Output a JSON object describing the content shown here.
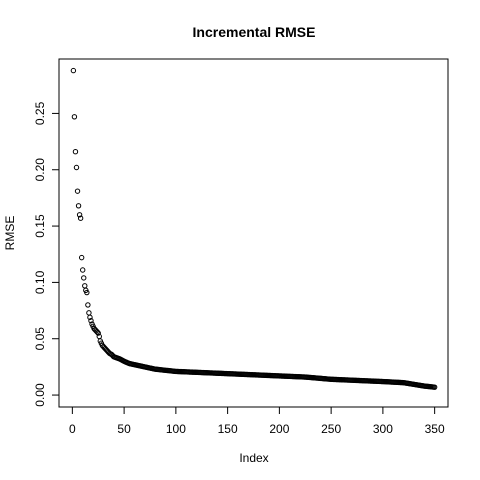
{
  "chart_data": {
    "type": "scatter",
    "title": "Incremental RMSE",
    "xlabel": "Index",
    "ylabel": "RMSE",
    "xlim": [
      -12.9,
      362.9
    ],
    "ylim": [
      -0.0106,
      0.2983
    ],
    "xticks": [
      0,
      50,
      100,
      150,
      200,
      250,
      300,
      350
    ],
    "xtick_labels": [
      "0",
      "50",
      "100",
      "150",
      "200",
      "250",
      "300",
      "350"
    ],
    "yticks": [
      0.0,
      0.05,
      0.1,
      0.15,
      0.2,
      0.25
    ],
    "ytick_labels": [
      "0.00",
      "0.05",
      "0.10",
      "0.15",
      "0.20",
      "0.25"
    ],
    "grid": false,
    "legend": "none",
    "marker": "open-circle",
    "color": "#000000",
    "n_points": 350,
    "explicit_points": [
      [
        1,
        0.288
      ],
      [
        2,
        0.247
      ],
      [
        3,
        0.216
      ],
      [
        4,
        0.202
      ],
      [
        5,
        0.181
      ],
      [
        6,
        0.168
      ],
      [
        7,
        0.16
      ],
      [
        8,
        0.157
      ],
      [
        9,
        0.122
      ],
      [
        10,
        0.111
      ],
      [
        11,
        0.104
      ],
      [
        12,
        0.097
      ],
      [
        13,
        0.093
      ],
      [
        14,
        0.091
      ],
      [
        15,
        0.08
      ],
      [
        16,
        0.073
      ],
      [
        17,
        0.069
      ],
      [
        18,
        0.066
      ],
      [
        19,
        0.063
      ],
      [
        20,
        0.061
      ],
      [
        21,
        0.059
      ],
      [
        22,
        0.058
      ],
      [
        23,
        0.057
      ],
      [
        24,
        0.056
      ],
      [
        25,
        0.055
      ],
      [
        26,
        0.052
      ],
      [
        27,
        0.048
      ],
      [
        28,
        0.046
      ],
      [
        29,
        0.044
      ],
      [
        30,
        0.043
      ],
      [
        32,
        0.041
      ],
      [
        34,
        0.039
      ],
      [
        36,
        0.037
      ],
      [
        38,
        0.036
      ],
      [
        40,
        0.034
      ],
      [
        43,
        0.033
      ],
      [
        46,
        0.032
      ],
      [
        50,
        0.03
      ],
      [
        55,
        0.028
      ],
      [
        60,
        0.027
      ],
      [
        70,
        0.025
      ],
      [
        80,
        0.023
      ],
      [
        90,
        0.022
      ],
      [
        100,
        0.021
      ],
      [
        125,
        0.02
      ],
      [
        150,
        0.019
      ],
      [
        175,
        0.018
      ],
      [
        200,
        0.017
      ],
      [
        225,
        0.016
      ],
      [
        250,
        0.014
      ],
      [
        275,
        0.013
      ],
      [
        300,
        0.012
      ],
      [
        320,
        0.011
      ],
      [
        330,
        0.0095
      ],
      [
        340,
        0.008
      ],
      [
        350,
        0.007
      ]
    ]
  }
}
